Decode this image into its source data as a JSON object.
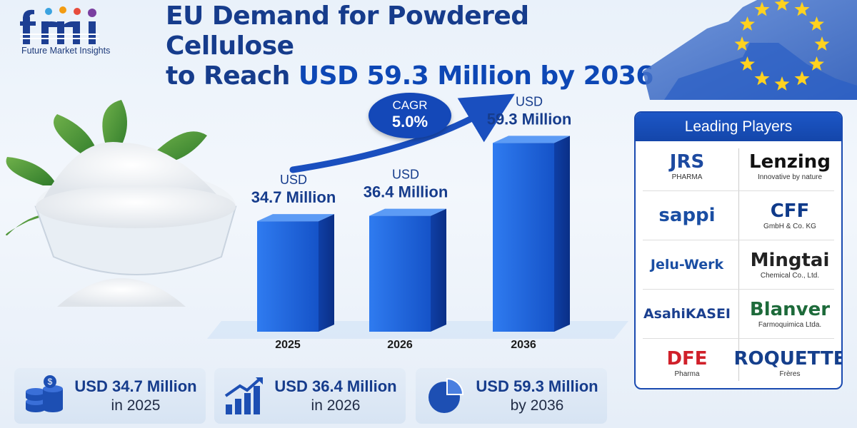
{
  "brand": {
    "name": "Future Market Insights",
    "logo_letters": "fmi"
  },
  "title": {
    "line1": "EU Demand for Powdered Cellulose",
    "line2_prefix": "to Reach ",
    "line2_highlight": "USD 59.3 Million by 2036"
  },
  "cagr": {
    "label": "CAGR",
    "value": "5.0%"
  },
  "chart_data": {
    "type": "bar",
    "categories": [
      "2025",
      "2026",
      "2036"
    ],
    "values": [
      34.7,
      36.4,
      59.3
    ],
    "value_labels": [
      [
        "USD",
        "34.7 Million"
      ],
      [
        "USD",
        "36.4 Million"
      ],
      [
        "USD",
        "59.3 Million"
      ]
    ],
    "unit": "USD Million",
    "title": "",
    "xlabel": "",
    "ylabel": "",
    "ylim": [
      0,
      65
    ],
    "color": "#1a5fd6"
  },
  "players": {
    "heading": "Leading Players",
    "items": [
      {
        "name": "JRS",
        "sub": "PHARMA",
        "color": "#1d4aa0"
      },
      {
        "name": "Lenzing",
        "sub": "Innovative by nature",
        "color": "#111111"
      },
      {
        "name": "sappi",
        "sub": "",
        "color": "#1a4ea3"
      },
      {
        "name": "CFF",
        "sub": "GmbH & Co. KG",
        "color": "#0f3a8a"
      },
      {
        "name": "Jelu-Werk",
        "sub": "",
        "color": "#1a4ea3"
      },
      {
        "name": "Mingtai",
        "sub": "Chemical Co., Ltd.",
        "color": "#222222"
      },
      {
        "name": "AsahiKASEI",
        "sub": "",
        "color": "#1a3f8f"
      },
      {
        "name": "Blanver",
        "sub": "Farmoquimica Ltda.",
        "color": "#1d6a3a"
      },
      {
        "name": "DFE",
        "sub": "Pharma",
        "color": "#d0202a"
      },
      {
        "name": "ROQUETTE",
        "sub": "Frères",
        "color": "#153f8c"
      }
    ]
  },
  "stats": [
    {
      "value": "USD 34.7 Million",
      "period": "in 2025",
      "icon": "money-stack-icon"
    },
    {
      "value": "USD 36.4 Million",
      "period": "in 2026",
      "icon": "growth-bars-icon"
    },
    {
      "value": "USD 59.3 Million",
      "period": "by 2036",
      "icon": "pie-chart-icon"
    }
  ]
}
